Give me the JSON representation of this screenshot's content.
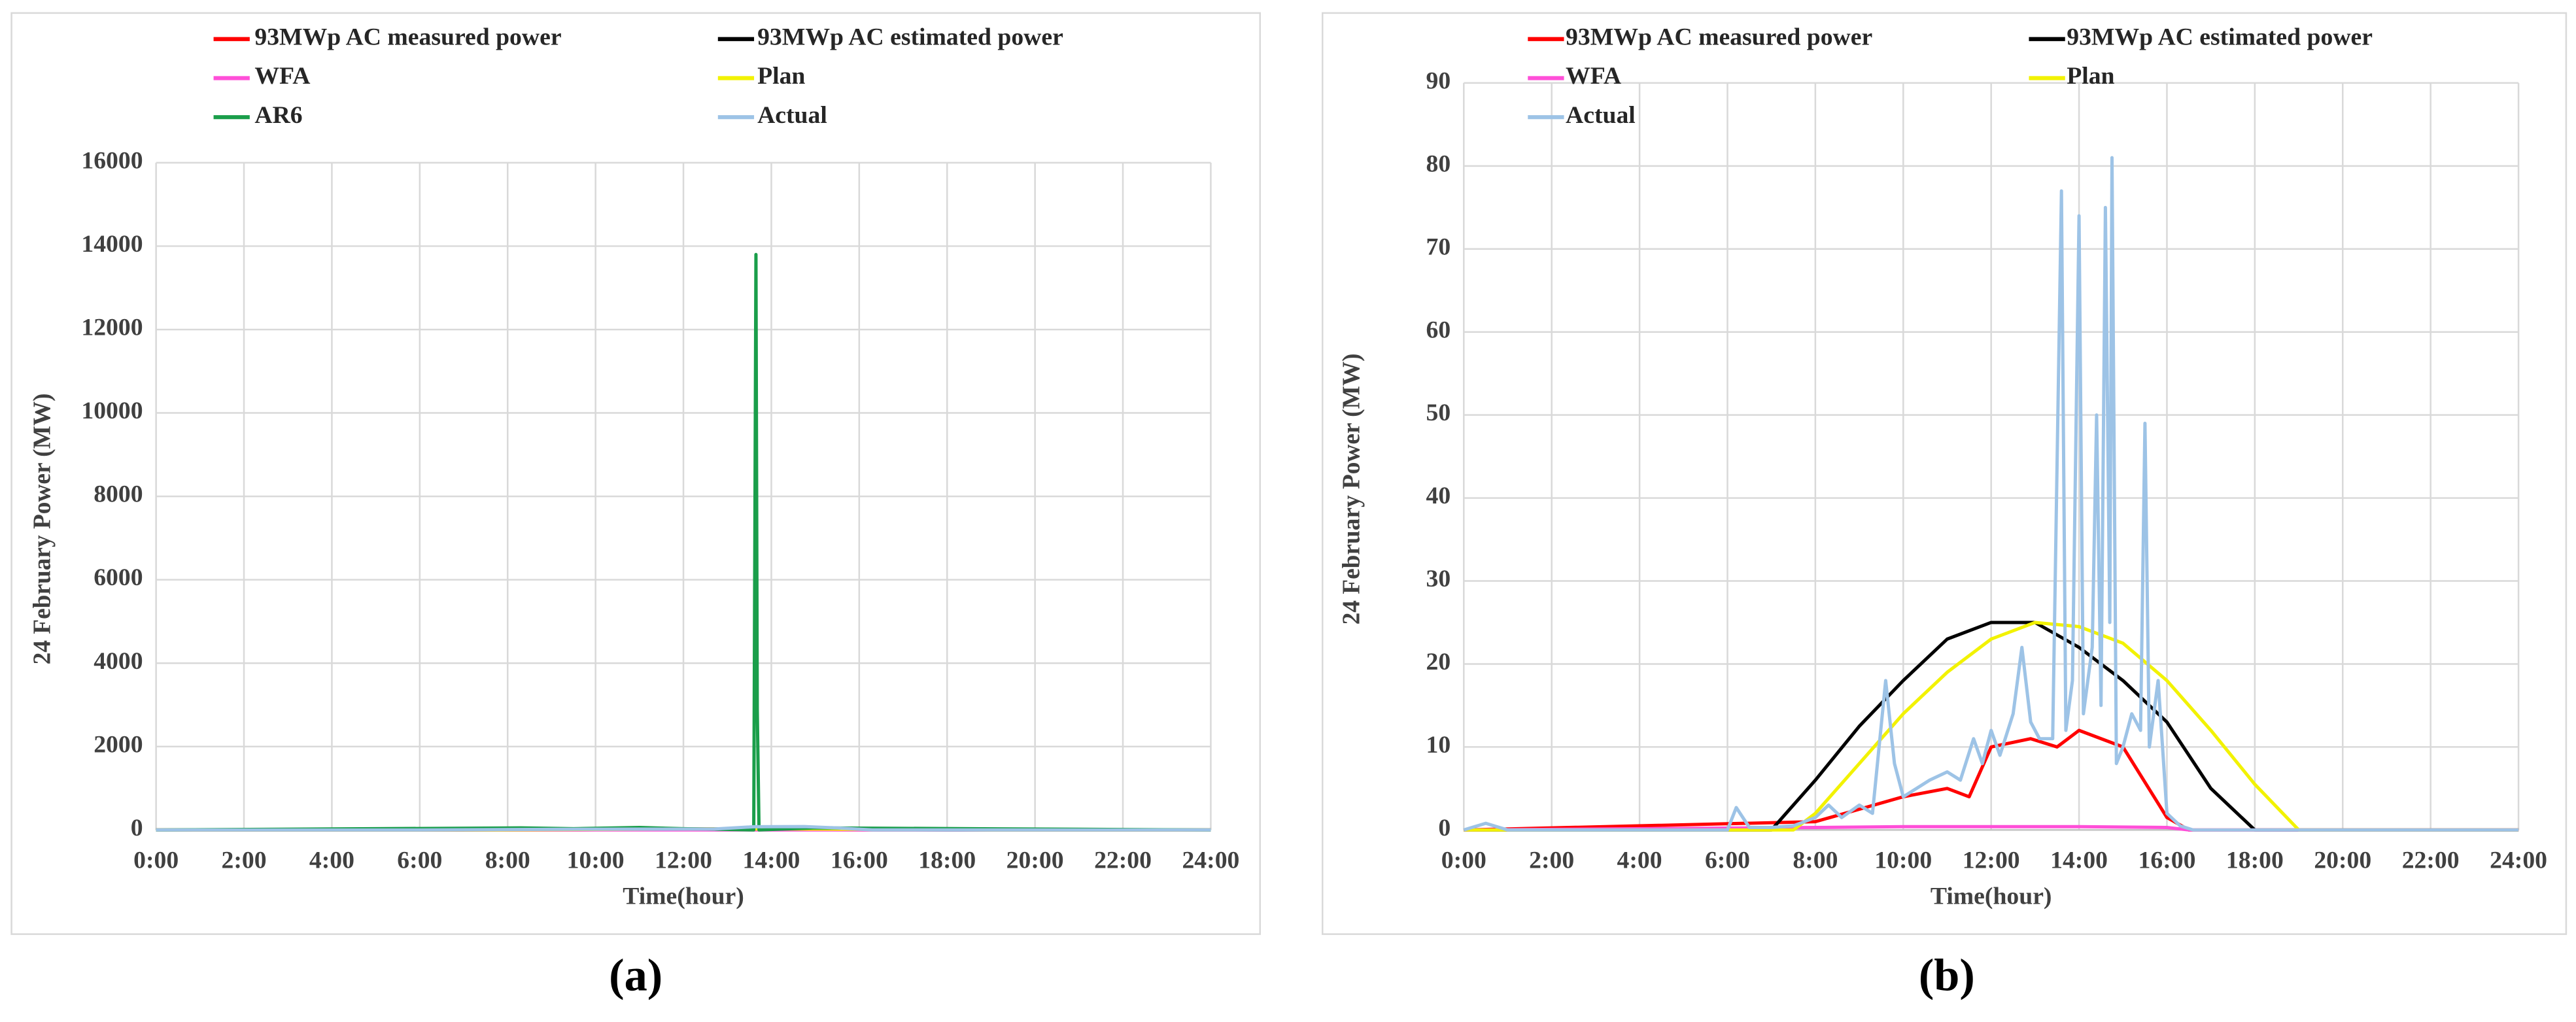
{
  "chart_data": [
    {
      "type": "line",
      "caption": "(a)",
      "x_label": "Time(hour)",
      "y_label": "24 February Power (MW)",
      "xlim": [
        0,
        24
      ],
      "ylim": [
        0,
        16000
      ],
      "xticks": [
        {
          "value": 0,
          "label": "0:00"
        },
        {
          "value": 2,
          "label": "2:00"
        },
        {
          "value": 4,
          "label": "4:00"
        },
        {
          "value": 6,
          "label": "6:00"
        },
        {
          "value": 8,
          "label": "8:00"
        },
        {
          "value": 10,
          "label": "10:00"
        },
        {
          "value": 12,
          "label": "12:00"
        },
        {
          "value": 14,
          "label": "14:00"
        },
        {
          "value": 16,
          "label": "16:00"
        },
        {
          "value": 18,
          "label": "18:00"
        },
        {
          "value": 20,
          "label": "20:00"
        },
        {
          "value": 22,
          "label": "22:00"
        },
        {
          "value": 24,
          "label": "24:00"
        }
      ],
      "yticks": [
        0,
        2000,
        4000,
        6000,
        8000,
        10000,
        12000,
        14000,
        16000
      ],
      "grid": true,
      "series": [
        {
          "name": "93MWp AC measured power",
          "color": "#ff0000",
          "x": [
            0,
            8,
            10,
            12,
            14,
            16,
            16.5,
            24
          ],
          "values": [
            0,
            1,
            4,
            10,
            12,
            2,
            0,
            0
          ]
        },
        {
          "name": "93MWp AC estimated power",
          "color": "#000000",
          "x": [
            0,
            7,
            8,
            9,
            10,
            11,
            12,
            13,
            14,
            15,
            16,
            17,
            18,
            24
          ],
          "values": [
            0,
            0,
            6,
            12.5,
            18,
            23,
            25,
            25,
            22,
            18,
            13,
            5,
            0,
            0
          ]
        },
        {
          "name": "WFA",
          "color": "#ff4fd8",
          "x": [
            0,
            8,
            12,
            16,
            16.5,
            24
          ],
          "values": [
            0,
            0.3,
            0.4,
            0.3,
            0,
            0
          ]
        },
        {
          "name": "Plan",
          "color": "#f2f200",
          "x": [
            0,
            7.5,
            9,
            11,
            13,
            15,
            17,
            19,
            24
          ],
          "values": [
            0,
            0,
            8,
            19,
            25,
            22.5,
            12,
            0,
            0
          ]
        },
        {
          "name": "AR6",
          "color": "#1a9e4a",
          "x": [
            0,
            8.3,
            9.5,
            11,
            12,
            13.6,
            13.65,
            13.68,
            13.72,
            15,
            24
          ],
          "values": [
            0,
            50,
            30,
            60,
            30,
            0,
            13800,
            2900,
            0,
            50,
            0
          ]
        },
        {
          "name": "Actual",
          "color": "#9dc3e6",
          "x": [
            0,
            6,
            9.6,
            12.7,
            13.6,
            14.75,
            15.5,
            16.3,
            24
          ],
          "values": [
            0,
            0,
            18,
            22,
            77,
            81,
            49,
            0.5,
            0
          ]
        }
      ]
    },
    {
      "type": "line",
      "caption": "(b)",
      "x_label": "Time(hour)",
      "y_label": "24 February Power (MW)",
      "xlim": [
        0,
        24
      ],
      "ylim": [
        0,
        90
      ],
      "xticks": [
        {
          "value": 0,
          "label": "0:00"
        },
        {
          "value": 2,
          "label": "2:00"
        },
        {
          "value": 4,
          "label": "4:00"
        },
        {
          "value": 6,
          "label": "6:00"
        },
        {
          "value": 8,
          "label": "8:00"
        },
        {
          "value": 10,
          "label": "10:00"
        },
        {
          "value": 12,
          "label": "12:00"
        },
        {
          "value": 14,
          "label": "14:00"
        },
        {
          "value": 16,
          "label": "16:00"
        },
        {
          "value": 18,
          "label": "18:00"
        },
        {
          "value": 20,
          "label": "20:00"
        },
        {
          "value": 22,
          "label": "22:00"
        },
        {
          "value": 24,
          "label": "24:00"
        }
      ],
      "yticks": [
        0,
        10,
        20,
        30,
        40,
        50,
        60,
        70,
        80,
        90
      ],
      "grid": true,
      "series": [
        {
          "name": "93MWp AC measured power",
          "color": "#ff0000",
          "x": [
            0,
            8,
            9,
            10,
            11,
            11.5,
            12,
            12.9,
            13.5,
            14,
            15,
            16,
            16.5,
            24
          ],
          "values": [
            0,
            1,
            2.5,
            4,
            5,
            4,
            10,
            11,
            10,
            12,
            10,
            1.5,
            0,
            0
          ]
        },
        {
          "name": "93MWp AC estimated power",
          "color": "#000000",
          "x": [
            0,
            7,
            8,
            9,
            10,
            11,
            12,
            13,
            14,
            15,
            16,
            17,
            18,
            24
          ],
          "values": [
            0,
            0,
            6,
            12.5,
            18,
            23,
            25,
            25,
            22,
            18,
            13,
            5,
            0,
            0
          ]
        },
        {
          "name": "WFA",
          "color": "#ff4fd8",
          "x": [
            0,
            8,
            10,
            12,
            14,
            16,
            16.5,
            24
          ],
          "values": [
            0,
            0.3,
            0.4,
            0.4,
            0.4,
            0.3,
            0,
            0
          ]
        },
        {
          "name": "Plan",
          "color": "#f2f200",
          "x": [
            0,
            7.5,
            8,
            9,
            10,
            11,
            12,
            13,
            14,
            15,
            16,
            17,
            18,
            19,
            24
          ],
          "values": [
            0,
            0,
            2,
            8,
            14,
            19,
            23,
            25,
            24.5,
            22.5,
            18,
            12,
            5.5,
            0,
            0
          ]
        },
        {
          "name": "Actual",
          "color": "#9dc3e6",
          "x": [
            0,
            0.5,
            1,
            6,
            6.2,
            6.5,
            7,
            7.5,
            8,
            8.3,
            8.6,
            9,
            9.3,
            9.6,
            9.8,
            10,
            10.3,
            10.6,
            11,
            11.3,
            11.6,
            11.8,
            12,
            12.2,
            12.5,
            12.7,
            12.9,
            13.1,
            13.4,
            13.6,
            13.7,
            13.85,
            14,
            14.1,
            14.3,
            14.4,
            14.5,
            14.6,
            14.7,
            14.75,
            14.85,
            15,
            15.2,
            15.4,
            15.5,
            15.6,
            15.8,
            16,
            16.3,
            16.6,
            24
          ],
          "values": [
            0,
            0.8,
            0,
            0,
            2.7,
            0.3,
            0.3,
            0.5,
            1.5,
            3,
            1.5,
            3,
            2,
            18,
            8,
            4,
            5,
            6,
            7,
            6,
            11,
            8,
            12,
            9,
            14,
            22,
            13,
            11,
            11,
            77,
            12,
            18,
            74,
            14,
            22,
            50,
            15,
            75,
            25,
            81,
            8,
            10,
            14,
            12,
            49,
            10,
            18,
            2,
            0.5,
            0,
            0
          ]
        }
      ]
    }
  ]
}
